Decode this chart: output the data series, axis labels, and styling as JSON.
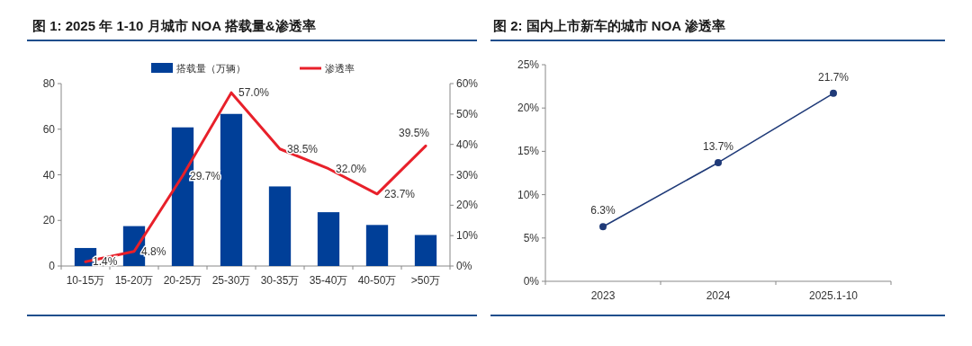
{
  "chart_data": [
    {
      "type": "bar",
      "title": "图 1: 2025 年 1-10 月城市 NOA 搭载量&渗透率",
      "categories": [
        "10-15万",
        "15-20万",
        "20-25万",
        "25-30万",
        "30-35万",
        "35-40万",
        "40-50万",
        ">50万"
      ],
      "series": [
        {
          "name": "搭载量（万辆）",
          "type": "bar",
          "color": "#003f98",
          "values": [
            7.9,
            17.5,
            60.8,
            66.7,
            34.9,
            23.6,
            18.0,
            13.6
          ]
        },
        {
          "name": "渗透率",
          "type": "line",
          "axis": "y2",
          "color": "#e8202a",
          "values": [
            1.4,
            4.8,
            29.7,
            57.0,
            38.5,
            32.0,
            23.7,
            39.5
          ],
          "value_labels": [
            "1.4%",
            "4.8%",
            "29.7%",
            "57.0%",
            "38.5%",
            "32.0%",
            "23.7%",
            "39.5%"
          ]
        }
      ],
      "ylim": [
        0,
        80
      ],
      "yticks": [
        0,
        20,
        40,
        60,
        80
      ],
      "y2lim": [
        0,
        60
      ],
      "y2ticks": [
        {
          "value": 0,
          "label": "0%"
        },
        {
          "value": 10,
          "label": "10%"
        },
        {
          "value": 20,
          "label": "20%"
        },
        {
          "value": 30,
          "label": "30%"
        },
        {
          "value": 40,
          "label": "40%"
        },
        {
          "value": 50,
          "label": "50%"
        },
        {
          "value": 60,
          "label": "60%"
        }
      ],
      "legend": "top",
      "grid": false
    },
    {
      "type": "line",
      "title": "图 2: 国内上市新车的城市 NOA 渗透率",
      "categories": [
        "2023",
        "2024",
        "2025.1-10"
      ],
      "series": [
        {
          "color": "#1f3a78",
          "values": [
            6.3,
            13.7,
            21.7
          ],
          "value_labels": [
            "6.3%",
            "13.7%",
            "21.7%"
          ]
        }
      ],
      "ylim": [
        0,
        25
      ],
      "yticks": [
        {
          "value": 0,
          "label": "0%"
        },
        {
          "value": 5,
          "label": "5%"
        },
        {
          "value": 10,
          "label": "10%"
        },
        {
          "value": 15,
          "label": "15%"
        },
        {
          "value": 20,
          "label": "20%"
        },
        {
          "value": 25,
          "label": "25%"
        }
      ],
      "marker": "circle",
      "grid": false
    }
  ]
}
